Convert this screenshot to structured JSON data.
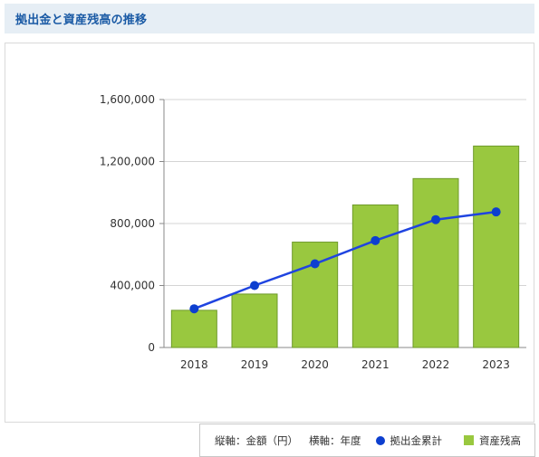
{
  "header": {
    "title": "拠出金と資産残高の推移"
  },
  "legend": {
    "y_axis_note": "縦軸：金額（円）",
    "x_axis_note": "横軸：年度",
    "line_label": "拠出金累計",
    "bar_label": "資産残高"
  },
  "colors": {
    "bar": "#99c83f",
    "bar_border": "#6e9a2a",
    "line": "#1f44e0",
    "marker": "#0d3fcf",
    "header_bg": "#e6eef5",
    "header_text": "#1a5aa5"
  },
  "chart_data": {
    "type": "bar",
    "categories": [
      "2018",
      "2019",
      "2020",
      "2021",
      "2022",
      "2023"
    ],
    "series": [
      {
        "name": "資産残高",
        "type": "bar",
        "values": [
          240000,
          345000,
          680000,
          920000,
          1090000,
          1300000
        ]
      },
      {
        "name": "拠出金累計",
        "type": "line",
        "values": [
          250000,
          400000,
          540000,
          690000,
          825000,
          875000
        ]
      }
    ],
    "yticks": [
      "0",
      "400,000",
      "800,000",
      "1,200,000",
      "1,600,000"
    ],
    "ylim": [
      0,
      1600000
    ],
    "grid": true,
    "legend_position": "bottom-right"
  }
}
